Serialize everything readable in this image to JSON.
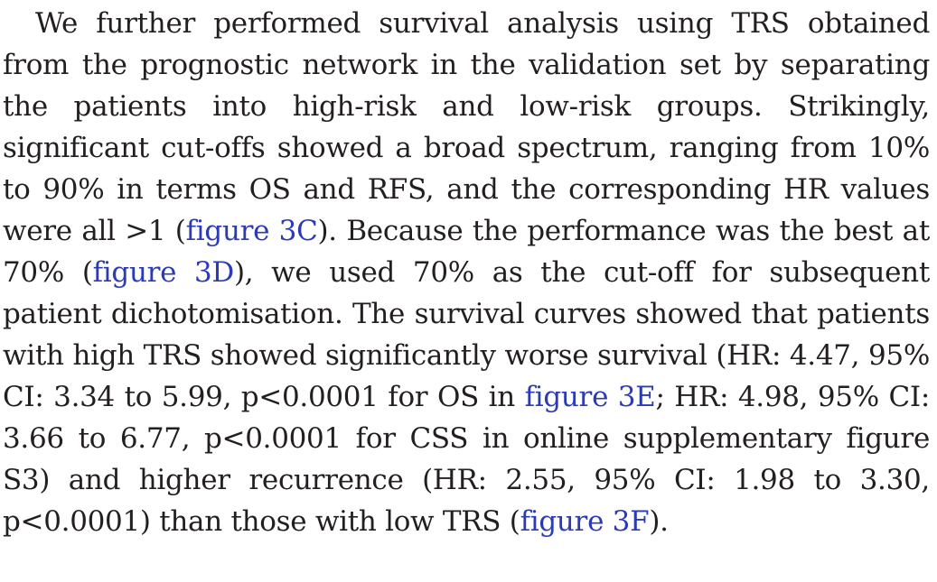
{
  "paragraph": {
    "segments": [
      {
        "type": "text",
        "text": "We further performed survival analysis using TRS obtained from the prognostic network in the validation set by separating the patients into high-risk and low-risk groups. Strikingly, significant cut-offs showed a broad spectrum, ranging from 10% to 90% in terms OS and RFS, and the corresponding HR values were all >1 ("
      },
      {
        "type": "link",
        "text": "figure 3C",
        "color": "#2b3bb5"
      },
      {
        "type": "text",
        "text": "). Because the performance was the best at 70% ("
      },
      {
        "type": "link",
        "text": "figure 3D",
        "color": "#2b3bb5"
      },
      {
        "type": "text",
        "text": "), we used 70% as the cut-off for subsequent patient dichotomisation. The survival curves showed that patients with high TRS showed significantly worse survival (HR: 4.47, 95% CI: 3.34 to 5.99, p<0.0001 for OS in "
      },
      {
        "type": "link",
        "text": "figure 3E",
        "color": "#2b3bb5"
      },
      {
        "type": "text",
        "text": "; HR: 4.98, 95% CI: 3.66 to 6.77, p<0.0001 for CSS in online supplementary figure S3) and higher recurrence (HR: 2.55, 95% CI: 1.98 to 3.30, p<0.0001) than those with low TRS ("
      },
      {
        "type": "link",
        "text": "figure 3F",
        "color": "#2b3bb5"
      },
      {
        "type": "text",
        "text": ")."
      }
    ]
  }
}
